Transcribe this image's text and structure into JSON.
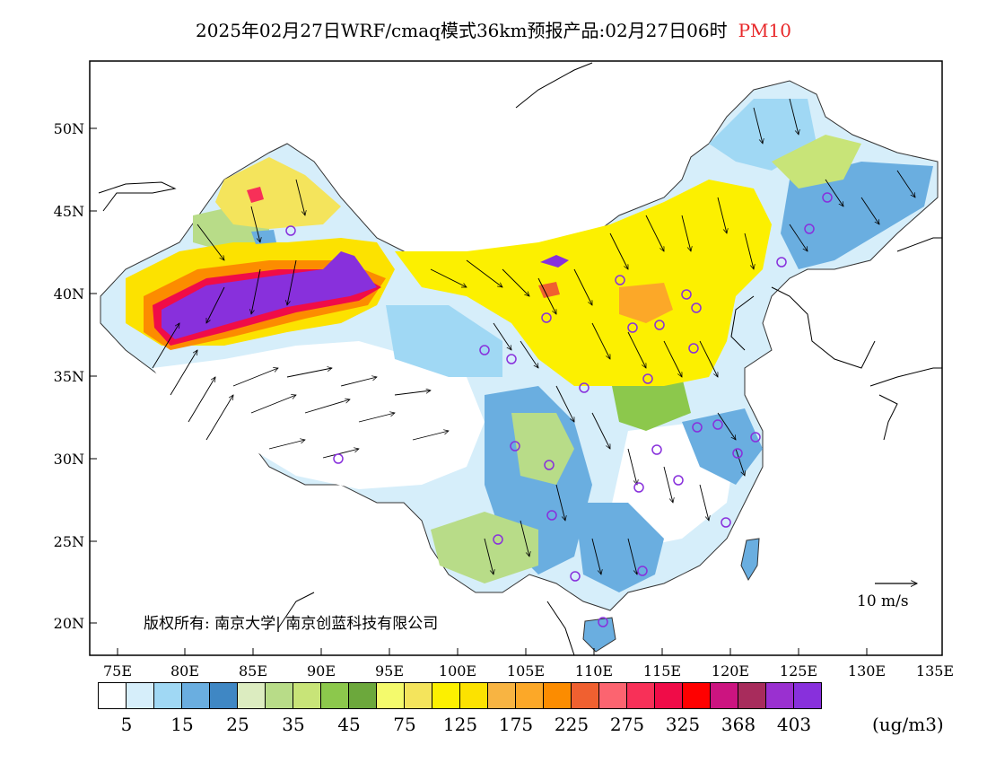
{
  "header": {
    "title": "2025年02月27日WRF/cmaq模式36km预报产品:02月27日06时",
    "variable": "PM10",
    "variable_color": "#e8282a"
  },
  "axes": {
    "lat_labels": [
      "50N",
      "45N",
      "40N",
      "35N",
      "30N",
      "25N",
      "20N"
    ],
    "lon_labels": [
      "75E",
      "80E",
      "85E",
      "90E",
      "95E",
      "100E",
      "105E",
      "110E",
      "115E",
      "120E",
      "125E",
      "130E",
      "135E"
    ]
  },
  "legend": {
    "colors": [
      "#ffffff",
      "#d6eefa",
      "#a0d8f4",
      "#6aaee0",
      "#3f87c4",
      "#dcecc0",
      "#b8dc88",
      "#c8e478",
      "#8cc84c",
      "#6ca83c",
      "#f4fa6c",
      "#f4e45c",
      "#fcf000",
      "#fce200",
      "#f8b442",
      "#fca828",
      "#fc8c00",
      "#f06030",
      "#fc6470",
      "#f83058",
      "#f00c48",
      "#ff0000",
      "#cc1480",
      "#a82c5c",
      "#9a30d0",
      "#8830dc"
    ],
    "labels": [
      "5",
      "15",
      "25",
      "35",
      "45",
      "75",
      "125",
      "175",
      "225",
      "275",
      "325",
      "368",
      "403"
    ],
    "unit": "(ug/m3)"
  },
  "annotations": {
    "copyright": "版权所有: 南京大学| 南京创蓝科技有限公司",
    "wind_reference": "10  m/s"
  }
}
